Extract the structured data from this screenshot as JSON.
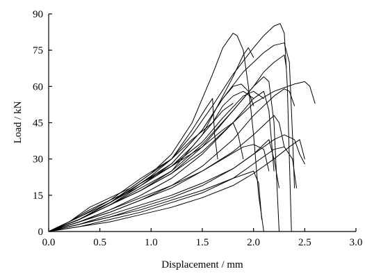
{
  "chart_data": {
    "type": "line",
    "title": "",
    "xlabel": "Displacement / mm",
    "ylabel": "Load / kN",
    "xlim": [
      0,
      3.0
    ],
    "ylim": [
      0,
      90
    ],
    "xticks": [
      "0.0",
      "0.5",
      "1.0",
      "1.5",
      "2.0",
      "2.5",
      "3.0"
    ],
    "yticks": [
      "0",
      "15",
      "30",
      "45",
      "60",
      "75",
      "90"
    ],
    "grid": false,
    "legend": "none",
    "line_color": "#000000",
    "series": [
      {
        "x": [
          0,
          0.2,
          0.4,
          0.6,
          0.8,
          1.0,
          1.2,
          1.4,
          1.6,
          1.7,
          1.8,
          1.84,
          1.9,
          1.95,
          2.0,
          2.05,
          2.1
        ],
        "y": [
          0,
          4,
          10,
          14,
          18,
          24,
          32,
          45,
          65,
          76,
          82,
          81,
          75,
          60,
          40,
          15,
          0
        ]
      },
      {
        "x": [
          0,
          0.2,
          0.4,
          0.6,
          0.8,
          1.0,
          1.2,
          1.4,
          1.6,
          1.8,
          2.0,
          2.1,
          2.2,
          2.26,
          2.3,
          2.33,
          2.35,
          2.37
        ],
        "y": [
          0,
          4,
          9,
          13,
          17,
          23,
          30,
          40,
          52,
          65,
          76,
          81,
          85,
          86,
          82,
          60,
          30,
          0
        ]
      },
      {
        "x": [
          0,
          0.3,
          0.6,
          0.9,
          1.2,
          1.5,
          1.7,
          1.9,
          2.1,
          2.2,
          2.3,
          2.35,
          2.38,
          2.4
        ],
        "y": [
          0,
          6,
          12,
          19,
          28,
          42,
          55,
          66,
          74,
          77,
          78,
          70,
          40,
          18
        ]
      },
      {
        "x": [
          0,
          0.3,
          0.6,
          0.9,
          1.2,
          1.5,
          1.7,
          1.8,
          1.9,
          1.95,
          2.0
        ],
        "y": [
          0,
          5,
          11,
          17,
          25,
          40,
          56,
          64,
          73,
          76,
          72
        ]
      },
      {
        "x": [
          0,
          0.3,
          0.6,
          0.9,
          1.2,
          1.5,
          1.8,
          2.0,
          2.1,
          2.2,
          2.3,
          2.32
        ],
        "y": [
          0,
          5,
          11,
          17,
          24,
          35,
          50,
          60,
          66,
          70,
          73,
          68
        ]
      },
      {
        "x": [
          0,
          0.3,
          0.6,
          0.9,
          1.2,
          1.5,
          1.8,
          2.0,
          2.1,
          2.15,
          2.2,
          2.25
        ],
        "y": [
          0,
          5,
          11,
          18,
          25,
          36,
          50,
          60,
          64,
          62,
          45,
          0
        ]
      },
      {
        "x": [
          0,
          0.3,
          0.6,
          0.9,
          1.2,
          1.5,
          1.7,
          1.8,
          1.88,
          1.95,
          2.0
        ],
        "y": [
          0,
          5,
          12,
          20,
          28,
          42,
          55,
          60,
          61,
          58,
          52
        ]
      },
      {
        "x": [
          0,
          0.3,
          0.6,
          0.9,
          1.2,
          1.5,
          1.8,
          2.0,
          2.2,
          2.4,
          2.5,
          2.55,
          2.6
        ],
        "y": [
          0,
          5,
          11,
          17,
          24,
          33,
          45,
          53,
          58,
          61,
          62,
          60,
          53
        ]
      },
      {
        "x": [
          0,
          0.3,
          0.6,
          0.9,
          1.2,
          1.4,
          1.6,
          1.7,
          1.8,
          1.9,
          2.0
        ],
        "y": [
          0,
          5,
          12,
          20,
          27,
          35,
          45,
          52,
          56,
          58,
          55
        ]
      },
      {
        "x": [
          0,
          0.3,
          0.6,
          0.9,
          1.2,
          1.5,
          1.8,
          2.0,
          2.1,
          2.15,
          2.2
        ],
        "y": [
          0,
          4,
          9,
          15,
          22,
          32,
          45,
          55,
          58,
          50,
          25
        ]
      },
      {
        "x": [
          0,
          0.3,
          0.6,
          0.9,
          1.2,
          1.5,
          1.7,
          1.9,
          2.0,
          2.1
        ],
        "y": [
          0,
          5,
          12,
          20,
          27,
          37,
          47,
          56,
          58,
          55
        ]
      },
      {
        "x": [
          0,
          0.3,
          0.6,
          0.9,
          1.2,
          1.5,
          1.8,
          2.0,
          2.2,
          2.3,
          2.35,
          2.4
        ],
        "y": [
          0,
          4,
          8,
          13,
          19,
          27,
          38,
          48,
          56,
          59,
          58,
          52
        ]
      },
      {
        "x": [
          0,
          0.3,
          0.6,
          0.9,
          1.2,
          1.4,
          1.55,
          1.6,
          1.62,
          1.65
        ],
        "y": [
          0,
          5,
          12,
          21,
          30,
          42,
          52,
          55,
          40,
          30
        ]
      },
      {
        "x": [
          0,
          0.3,
          0.6,
          0.9,
          1.2,
          1.4,
          1.6,
          1.7,
          1.8
        ],
        "y": [
          0,
          6,
          13,
          22,
          30,
          38,
          45,
          50,
          53
        ]
      },
      {
        "x": [
          0,
          0.3,
          0.6,
          0.9,
          1.2,
          1.5,
          1.8,
          2.0,
          2.2,
          2.25,
          2.3
        ],
        "y": [
          0,
          4,
          8,
          13,
          18,
          25,
          33,
          40,
          48,
          45,
          35
        ]
      },
      {
        "x": [
          0,
          0.3,
          0.6,
          0.9,
          1.2,
          1.5,
          1.7,
          1.8,
          1.85,
          1.9
        ],
        "y": [
          0,
          5,
          11,
          19,
          27,
          35,
          42,
          45,
          40,
          30
        ]
      },
      {
        "x": [
          0,
          0.3,
          0.6,
          0.9,
          1.2,
          1.5,
          1.7,
          1.9,
          2.0,
          2.1,
          2.15
        ],
        "y": [
          0,
          4,
          9,
          14,
          19,
          25,
          30,
          35,
          36,
          34,
          25
        ]
      },
      {
        "x": [
          0,
          0.3,
          0.6,
          0.9,
          1.2,
          1.5,
          1.8,
          2.0,
          2.2,
          2.3,
          2.4,
          2.45,
          2.5
        ],
        "y": [
          0,
          3,
          7,
          11,
          15,
          20,
          26,
          32,
          38,
          40,
          38,
          32,
          28
        ]
      },
      {
        "x": [
          0,
          0.3,
          0.6,
          0.9,
          1.2,
          1.5,
          1.8,
          2.0,
          2.1,
          2.15,
          2.2,
          2.25
        ],
        "y": [
          0,
          3,
          6,
          10,
          14,
          19,
          26,
          32,
          36,
          38,
          30,
          18
        ]
      },
      {
        "x": [
          0,
          0.3,
          0.6,
          0.9,
          1.2,
          1.5,
          1.8,
          2.0,
          2.2,
          2.3,
          2.38,
          2.42
        ],
        "y": [
          0,
          2,
          5,
          8,
          12,
          16,
          22,
          28,
          34,
          35,
          30,
          18
        ]
      },
      {
        "x": [
          0,
          0.3,
          0.6,
          0.9,
          1.2,
          1.5,
          1.8,
          2.0,
          2.2,
          2.35,
          2.45,
          2.5
        ],
        "y": [
          0,
          2,
          4,
          7,
          10,
          14,
          19,
          24,
          30,
          35,
          38,
          30
        ]
      },
      {
        "x": [
          0,
          0.3,
          0.6,
          0.9,
          1.2,
          1.5,
          1.8,
          2.0,
          2.05,
          2.08
        ],
        "y": [
          0,
          3,
          6,
          9,
          13,
          17,
          22,
          25,
          20,
          5
        ]
      }
    ]
  }
}
